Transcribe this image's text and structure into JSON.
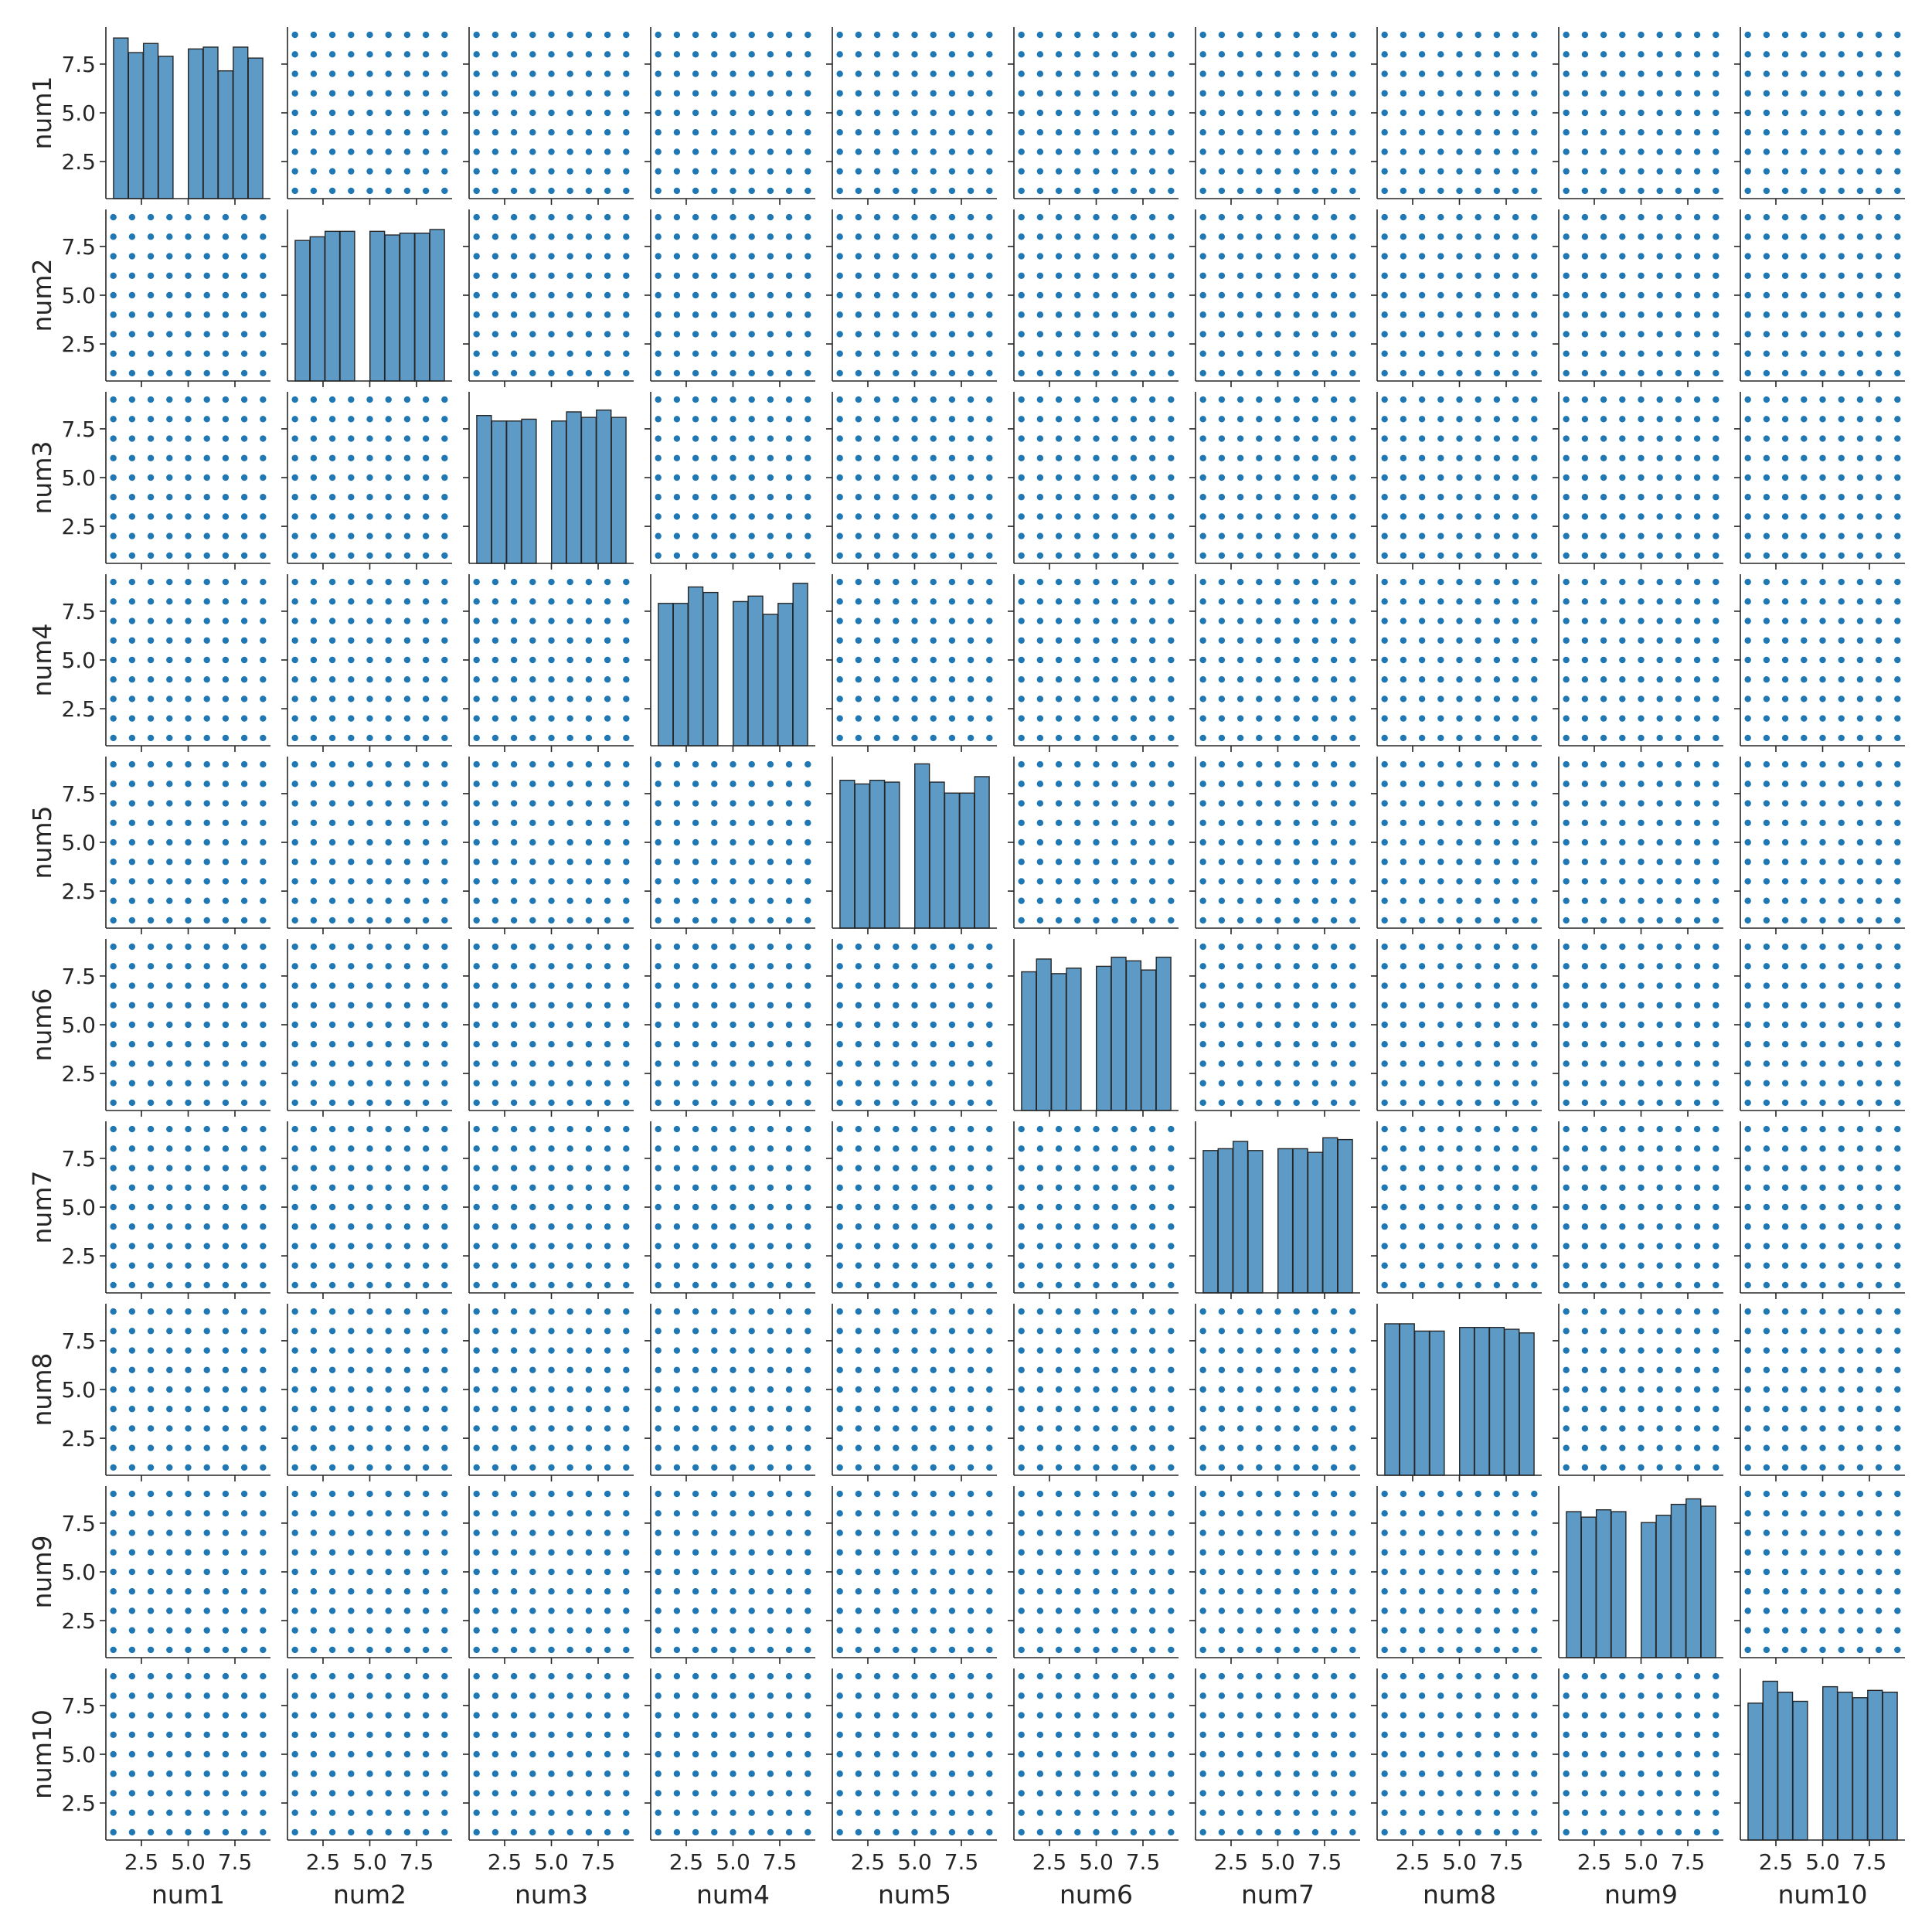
{
  "chart_data": {
    "type": "pairplot",
    "variables": [
      "num1",
      "num2",
      "num3",
      "num4",
      "num5",
      "num6",
      "num7",
      "num8",
      "num9",
      "num10"
    ],
    "offdiagonal": {
      "type": "scatter",
      "x_values": [
        1,
        2,
        3,
        4,
        5,
        6,
        7,
        8,
        9
      ],
      "y_values": [
        1,
        2,
        3,
        4,
        5,
        6,
        7,
        8,
        9
      ],
      "description_grid": "every combination of integer x and y from 1 to 9"
    },
    "diagonal": {
      "type": "histogram",
      "bins": 10,
      "bin_centers": [
        1.4,
        2.2,
        3.0,
        3.8,
        4.6,
        5.4,
        6.2,
        7.0,
        7.8,
        8.6
      ],
      "histograms": [
        [
          8.8,
          8.0,
          8.5,
          7.8,
          0,
          8.2,
          8.3,
          7.0,
          8.3,
          7.7
        ],
        [
          7.7,
          7.9,
          8.2,
          8.2,
          0,
          8.2,
          8.0,
          8.1,
          8.1,
          8.3
        ],
        [
          8.1,
          7.8,
          7.8,
          7.9,
          0,
          7.8,
          8.3,
          8.0,
          8.4,
          8.0
        ],
        [
          7.8,
          7.8,
          8.7,
          8.4,
          0,
          7.9,
          8.2,
          7.2,
          7.8,
          8.9
        ],
        [
          8.1,
          7.9,
          8.1,
          8.0,
          0,
          9.0,
          8.0,
          7.4,
          7.4,
          8.3
        ],
        [
          7.6,
          8.3,
          7.5,
          7.8,
          0,
          7.9,
          8.4,
          8.2,
          7.7,
          8.4
        ],
        [
          7.8,
          7.9,
          8.3,
          7.8,
          0,
          7.9,
          7.9,
          7.7,
          8.5,
          8.4
        ],
        [
          8.3,
          8.3,
          7.9,
          7.9,
          0,
          8.1,
          8.1,
          8.1,
          8.0,
          7.8
        ],
        [
          8.0,
          7.7,
          8.1,
          8.0,
          0,
          7.4,
          7.8,
          8.4,
          8.7,
          8.3
        ],
        [
          7.5,
          8.7,
          8.1,
          7.6,
          0,
          8.4,
          8.1,
          7.8,
          8.2,
          8.1
        ]
      ]
    },
    "xlim": [
      0.6,
      9.4
    ],
    "ylim": [
      0.6,
      9.4
    ],
    "x_ticks": [
      2.5,
      5.0,
      7.5
    ],
    "x_tick_labels": [
      "2.5",
      "5.0",
      "7.5"
    ],
    "y_ticks": [
      2.5,
      5.0,
      7.5
    ],
    "y_tick_labels": [
      "2.5",
      "5.0",
      "7.5"
    ],
    "x_tick_labels_last_col": [
      "2.5",
      "5.0",
      "7.5"
    ],
    "y_tick_labels_first_row": [
      "2.5",
      "5.0",
      "7.5"
    ]
  },
  "colors": {
    "marker": "#1f77b4",
    "bar_fill": "#5d9ac6",
    "bar_edge": "#262626",
    "axis": "#262626"
  }
}
